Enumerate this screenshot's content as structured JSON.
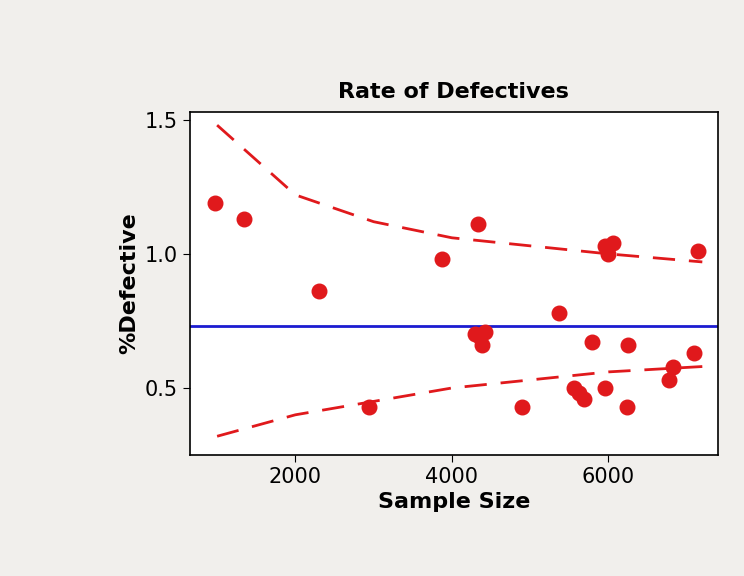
{
  "chart_data": {
    "type": "scatter",
    "title": "Rate of Defectives",
    "x_label": "Sample Size",
    "y_label": "%Defective",
    "xlim": [
      650,
      7400
    ],
    "ylim": [
      0.25,
      1.53
    ],
    "xticks": [
      2000,
      4000,
      6000
    ],
    "yticks": [
      {
        "value": 0.5,
        "label": "0.5"
      },
      {
        "value": 1.0,
        "label": "1.0"
      },
      {
        "value": 1.5,
        "label": "1.5"
      }
    ],
    "grid": false,
    "series": [
      {
        "type": "line",
        "color": "#e0191c",
        "line_style": "dashed",
        "x": [
          1000,
          2000,
          3000,
          4000,
          5000,
          6000,
          7200
        ],
        "values": [
          1.48,
          1.22,
          1.12,
          1.06,
          1.03,
          1.0,
          0.97
        ]
      },
      {
        "type": "line",
        "color": "#e0191c",
        "line_style": "dashed",
        "x": [
          1000,
          2000,
          3000,
          4000,
          5000,
          6000,
          7200
        ],
        "values": [
          0.32,
          0.4,
          0.45,
          0.5,
          0.53,
          0.56,
          0.58
        ]
      },
      {
        "type": "line",
        "color": "#1c1cd0",
        "line_style": "solid",
        "x": [
          650,
          7400
        ],
        "values": [
          0.73,
          0.73
        ]
      },
      {
        "type": "scatter",
        "color": "#e0191c",
        "marker": "o",
        "x": [
          974,
          1346,
          2308,
          2936,
          3872,
          4333,
          4300,
          4380,
          4420,
          4360,
          4900,
          5372,
          5564,
          5630,
          5692,
          5795,
          5962,
          5960,
          6060,
          6000,
          6256,
          6244,
          6770,
          6820,
          7090,
          7150
        ],
        "values": [
          1.19,
          1.13,
          0.86,
          0.43,
          0.98,
          1.11,
          0.7,
          0.66,
          0.71,
          0.69,
          0.43,
          0.78,
          0.5,
          0.48,
          0.46,
          0.67,
          0.5,
          1.03,
          1.04,
          1.0,
          0.66,
          0.43,
          0.53,
          0.58,
          0.63,
          1.01
        ]
      }
    ]
  }
}
